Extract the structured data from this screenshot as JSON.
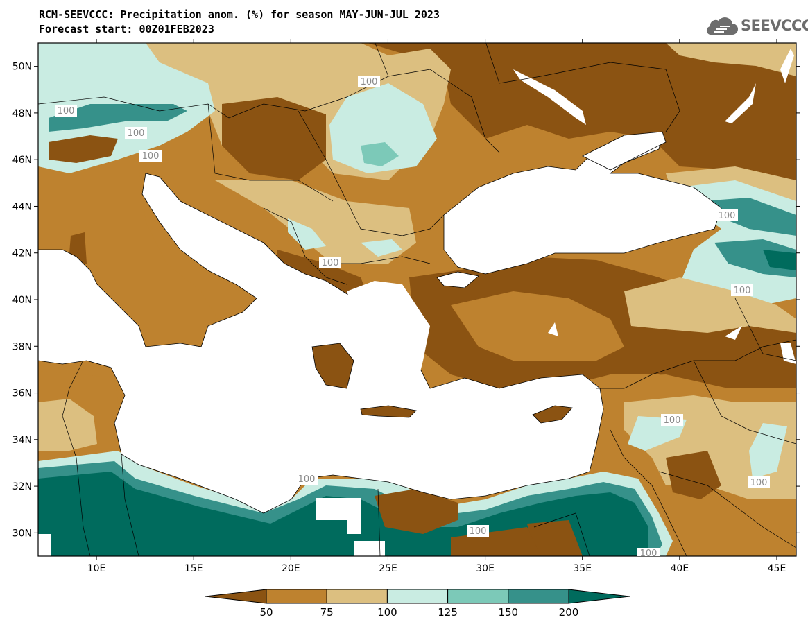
{
  "header": {
    "title_line1": "RCM-SEEVCCC: Precipitation anom. (%) for season MAY-JUN-JUL 2023",
    "title_line2": "Forecast start: 00Z01FEB2023"
  },
  "logo": {
    "text": "SEEVCCC",
    "icon": "cloud-icon"
  },
  "map": {
    "lon_range": [
      7,
      46
    ],
    "lat_range": [
      29,
      51
    ],
    "lon_ticks": [
      "10E",
      "15E",
      "20E",
      "25E",
      "30E",
      "35E",
      "40E",
      "45E"
    ],
    "lat_ticks": [
      "50N",
      "48N",
      "46N",
      "44N",
      "42N",
      "40N",
      "38N",
      "36N",
      "34N",
      "32N",
      "30N"
    ],
    "contour_labels": [
      "100",
      "100",
      "100",
      "100",
      "100",
      "100",
      "100",
      "100",
      "100",
      "100",
      "100",
      "100"
    ]
  },
  "colorbar": {
    "levels": [
      "50",
      "75",
      "100",
      "125",
      "150",
      "200"
    ],
    "colors": [
      "#8b5312",
      "#be822f",
      "#dcbf80",
      "#c9ece2",
      "#7cc9b8",
      "#36918a",
      "#006b5d"
    ]
  },
  "colors": {
    "very_dry": "#8b5312",
    "dry": "#be822f",
    "slightly_dry": "#dcbf80",
    "normal_wet": "#c9ece2",
    "wet": "#7cc9b8",
    "very_wet": "#36918a",
    "extreme_wet": "#006b5d",
    "sea": "#ffffff"
  }
}
